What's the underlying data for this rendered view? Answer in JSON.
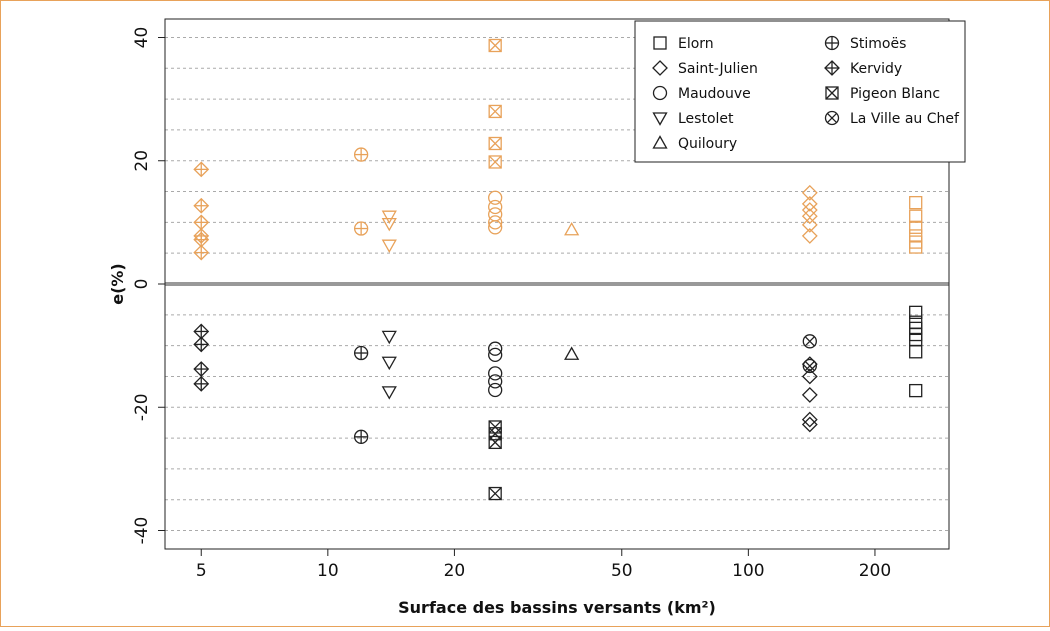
{
  "chart_data": {
    "type": "scatter",
    "xlabel": "Surface des bassins versants (km²)",
    "ylabel": "e(%)",
    "x_scale": "log",
    "xlim": [
      4.1,
      300
    ],
    "ylim": [
      -43,
      43
    ],
    "x_ticks": [
      5,
      10,
      20,
      50,
      100,
      200
    ],
    "y_ticks": [
      -40,
      -20,
      0,
      20,
      40
    ],
    "gridlines_y": [
      -40,
      -35,
      -30,
      -25,
      -20,
      -15,
      -10,
      -5,
      5,
      10,
      15,
      20,
      25,
      30,
      35,
      40
    ],
    "grid": "horizontal dotted",
    "legend_position": "top-right",
    "colors": {
      "positive": "#e8a25a",
      "negative": "#222222",
      "zero_line": "#999999",
      "grid": "#aaaaaa",
      "frame": "#e8a25a"
    },
    "series": [
      {
        "name": "Elorn",
        "symbol": "square",
        "x": 250,
        "values": [
          13.2,
          11,
          9.2,
          7.8,
          6.8,
          6,
          -4.6,
          -6.2,
          -7.2,
          -8.2,
          -9,
          -11,
          -17.3
        ]
      },
      {
        "name": "Saint-Julien",
        "symbol": "diamond",
        "x": 140,
        "values": [
          14.8,
          13,
          12,
          11,
          9.6,
          7.8,
          -13,
          -15,
          -18,
          -22,
          -22.8
        ]
      },
      {
        "name": "Maudouve",
        "symbol": "circle",
        "x": 25,
        "values": [
          14,
          12.5,
          11.3,
          10,
          9.2,
          -10.5,
          -11.5,
          -14.5,
          -15.8,
          -17.2
        ]
      },
      {
        "name": "Lestolet",
        "symbol": "triangle-down",
        "x": 14,
        "values": [
          11,
          9.8,
          6.3,
          -8.5,
          -12.7,
          -17.5
        ]
      },
      {
        "name": "Quiloury",
        "symbol": "triangle-up",
        "x": 38,
        "values": [
          8.8,
          -11.4
        ]
      },
      {
        "name": "Stimoës",
        "symbol": "circle-plus",
        "x": 12,
        "values": [
          21,
          9,
          -11.2,
          -24.8
        ]
      },
      {
        "name": "Kervidy",
        "symbol": "diamond-plus",
        "x": 5,
        "values": [
          18.6,
          12.7,
          10,
          7.8,
          7.2,
          5.1,
          -7.7,
          -9.8,
          -13.8,
          -16.2
        ]
      },
      {
        "name": "Pigeon Blanc",
        "symbol": "square-x",
        "x": 25,
        "values": [
          38.7,
          28,
          22.8,
          19.8,
          -23.2,
          -24.3,
          -25.7,
          -34
        ]
      },
      {
        "name": "La Ville au Chef",
        "symbol": "circle-x",
        "x": 140,
        "values": [
          -9.3,
          -13.3
        ]
      }
    ]
  }
}
